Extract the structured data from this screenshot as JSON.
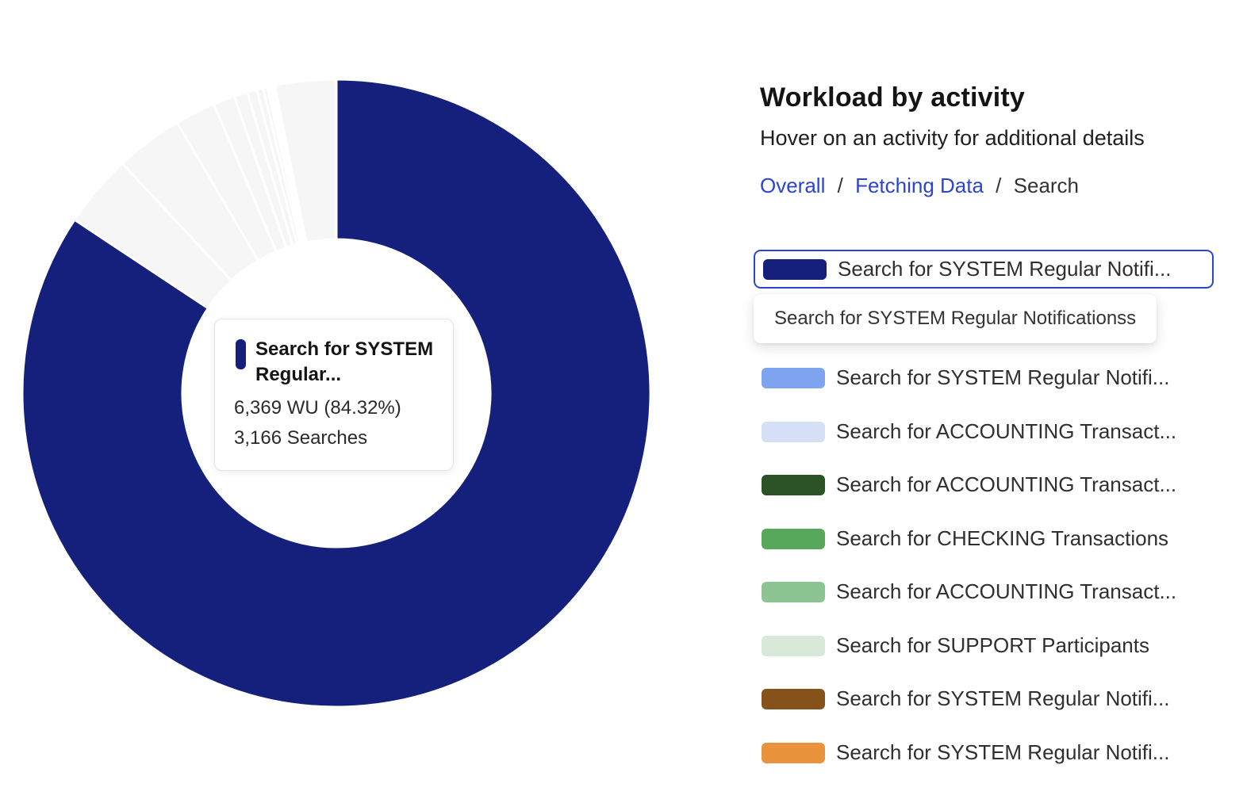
{
  "panel": {
    "title": "Workload by activity",
    "subtitle": "Hover on an activity for additional details",
    "breadcrumb": {
      "separator": "/",
      "items": [
        {
          "label": "Overall",
          "type": "link"
        },
        {
          "label": "Fetching Data",
          "type": "link"
        },
        {
          "label": "Search",
          "type": "current"
        }
      ]
    },
    "accent_color": "#2b44d4",
    "legend": {
      "selected_item": {
        "label": "Search for SYSTEM Regular Notifi...",
        "color": "#14207b",
        "tooltip": "Search for SYSTEM Regular Notificationss"
      },
      "items": [
        {
          "label": "Search for SYSTEM Regular Notifi...",
          "color": "#7ea3ef"
        },
        {
          "label": "Search for ACCOUNTING Transact...",
          "color": "#d5e0f7"
        },
        {
          "label": "Search for ACCOUNTING Transact...",
          "color": "#2b5327"
        },
        {
          "label": "Search for CHECKING Transactions",
          "color": "#57a85a"
        },
        {
          "label": "Search for ACCOUNTING Transact...",
          "color": "#8cc591"
        },
        {
          "label": "Search for SUPPORT Participants",
          "color": "#d8e9da"
        },
        {
          "label": "Search for SYSTEM Regular Notifi...",
          "color": "#85521b"
        },
        {
          "label": "Search for SYSTEM Regular Notifi...",
          "color": "#e9933c"
        }
      ]
    }
  },
  "center_tooltip": {
    "title_line1": "Search for SYSTEM",
    "title_line2": "Regular...",
    "value_line": "6,369 WU (84.32%)",
    "searches_line": "3,166 Searches",
    "marker_color": "#14207b"
  },
  "chart_data": {
    "type": "pie",
    "variant": "donut",
    "title": "Workload by activity",
    "legend_position": "right",
    "state": "hover-highlight: first slice highlighted, all other slices dimmed",
    "dimmed_color": "#f6f6f6",
    "gap_color": "#ffffff",
    "hovered_slice": {
      "label": "Search for SYSTEM Regular Notificationss",
      "wu": 6369,
      "pct": 84.32,
      "searches": 3166
    },
    "slices": [
      {
        "label": "Search for SYSTEM Regular Notificationss",
        "pct": 84.32,
        "display_color": "#14207b",
        "state": "hovered"
      },
      {
        "label": null,
        "pct": 3.75,
        "display_color": "#f6f6f6",
        "state": "dimmed"
      },
      {
        "label": null,
        "pct": 3.47,
        "display_color": "#f6f6f6",
        "state": "dimmed"
      },
      {
        "label": null,
        "pct": 2.08,
        "display_color": "#f6f6f6",
        "state": "dimmed"
      },
      {
        "label": null,
        "pct": 1.11,
        "display_color": "#f6f6f6",
        "state": "dimmed"
      },
      {
        "label": null,
        "pct": 0.69,
        "display_color": "#f6f6f6",
        "state": "dimmed"
      },
      {
        "label": null,
        "pct": 0.5,
        "display_color": "#f6f6f6",
        "state": "dimmed"
      },
      {
        "label": null,
        "pct": 0.33,
        "display_color": "#f6f6f6",
        "state": "dimmed"
      },
      {
        "label": null,
        "pct": 0.22,
        "display_color": "#f6f6f6",
        "state": "dimmed"
      },
      {
        "label": null,
        "pct": 0.14,
        "display_color": "#f6f6f6",
        "state": "dimmed"
      },
      {
        "label": null,
        "pct": 0.1,
        "display_color": "#f6f6f6",
        "state": "dimmed"
      },
      {
        "label": null,
        "pct": 0.08,
        "display_color": "#f6f6f6",
        "state": "dimmed"
      },
      {
        "label": null,
        "pct": 0.07,
        "display_color": "#f6f6f6",
        "state": "dimmed"
      },
      {
        "label": null,
        "pct": 3.13,
        "display_color": "#f6f6f6",
        "state": "dimmed"
      }
    ],
    "geometry": {
      "outer_radius": 396,
      "inner_radius": 194,
      "start_angle_deg": 0,
      "direction": "clockwise"
    }
  }
}
